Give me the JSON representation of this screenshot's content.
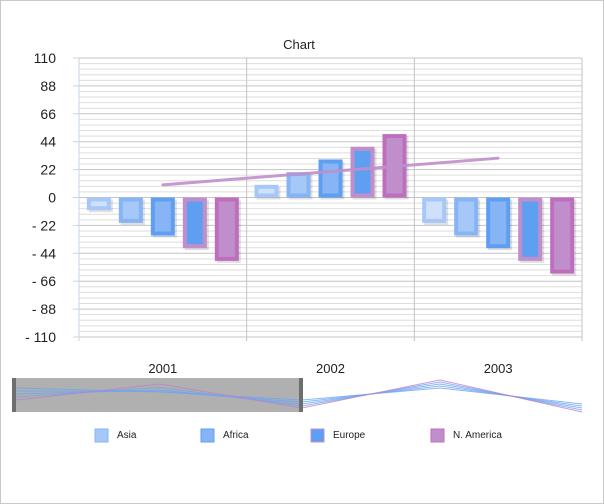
{
  "chart_data": {
    "type": "bar",
    "title": "Chart",
    "categories": [
      "2001",
      "2002",
      "2003"
    ],
    "ylim": [
      -110,
      110
    ],
    "yticks": [
      "110",
      "88",
      "66",
      "44",
      "22",
      "0",
      "- 22",
      "- 44",
      "- 66",
      "- 88",
      "- 110"
    ],
    "ytick_values": [
      110,
      88,
      66,
      44,
      22,
      0,
      -22,
      -44,
      -66,
      -88,
      -110
    ],
    "grid": true,
    "series": [
      {
        "values": [
          -10,
          10,
          -20
        ],
        "fill": "#cfe0fb",
        "border": "#a6c8f8"
      },
      {
        "values": [
          -20,
          20,
          -30
        ],
        "fill": "#a6c8f8",
        "border": "#86b4f5"
      },
      {
        "values": [
          -30,
          30,
          -40
        ],
        "fill": "#86b4f5",
        "border": "#5f9ff2"
      },
      {
        "values": [
          -40,
          40,
          -50
        ],
        "fill": "#5f9ff2",
        "border": "#c08fcb"
      },
      {
        "values": [
          -50,
          50,
          -60
        ],
        "fill": "#c08fcb",
        "border": "#bd6fbd"
      }
    ],
    "trendline": {
      "values": [
        10,
        31
      ],
      "color": "#c08fcb"
    },
    "legend": {
      "position": "bottom",
      "items": [
        {
          "label": "Asia",
          "fill": "#a6c8f8",
          "border": "#86b4f5"
        },
        {
          "label": "Africa",
          "fill": "#86b4f5",
          "border": "#5f9ff2"
        },
        {
          "label": "Europe",
          "fill": "#5f9ff2",
          "border": "#c08fcb"
        },
        {
          "label": "N. America",
          "fill": "#c08fcb",
          "border": "#bd6fbd"
        }
      ]
    }
  }
}
